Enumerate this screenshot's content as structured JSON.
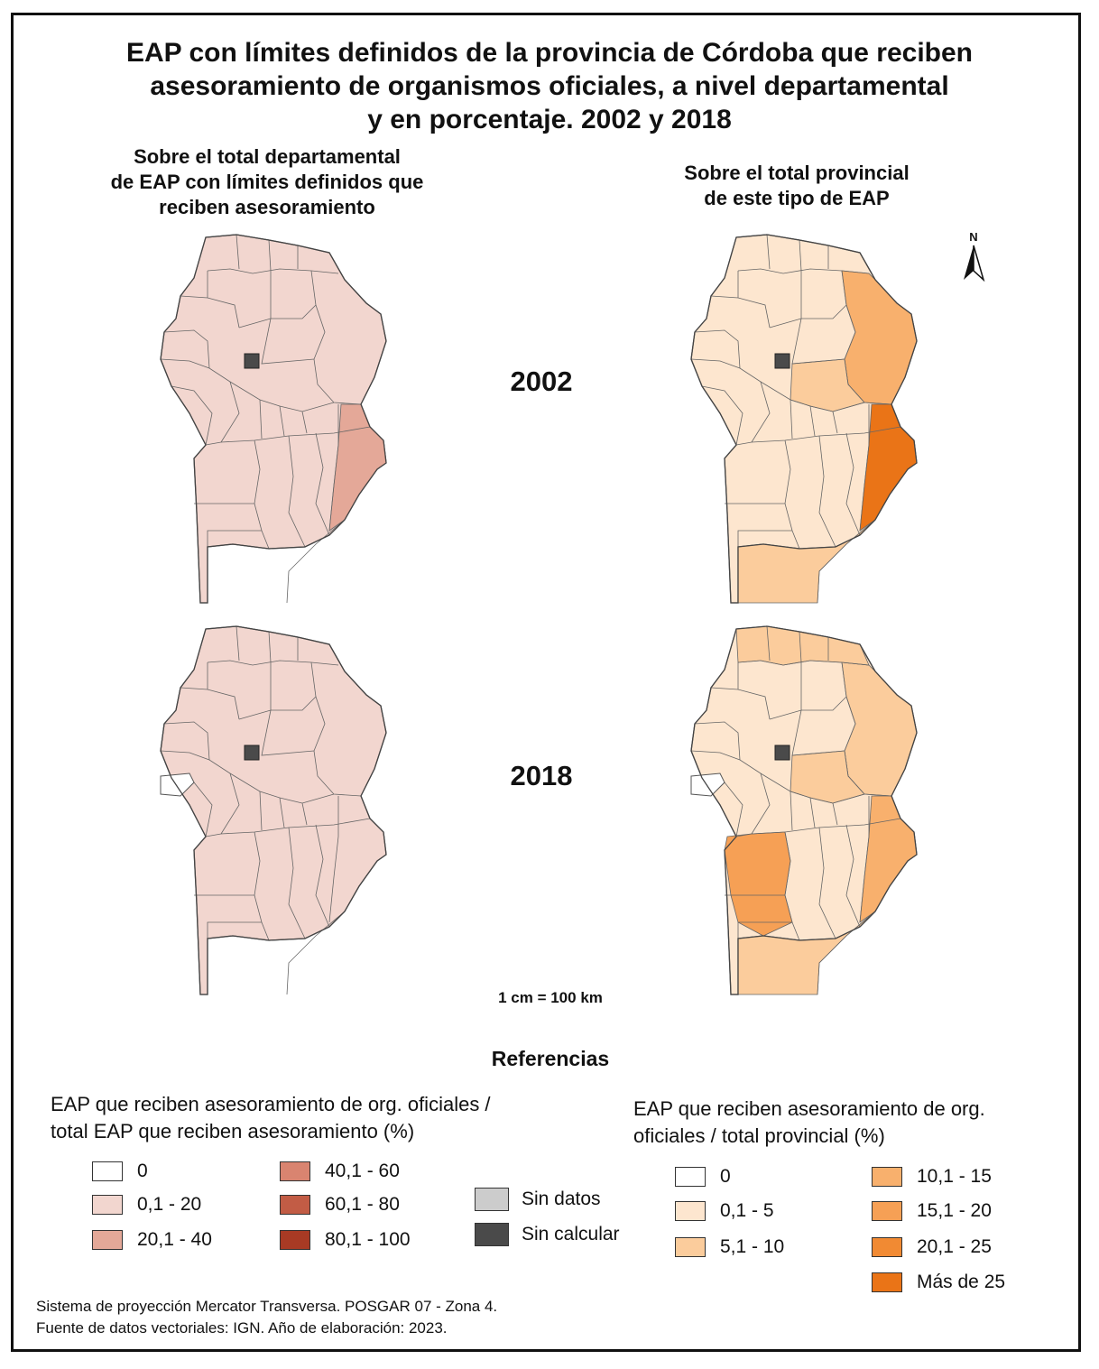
{
  "title": [
    "EAP con límites definidos de la provincia de Córdoba que reciben",
    "asesoramiento de organismos oficiales, a nivel departamental",
    "y en porcentaje. 2002 y 2018"
  ],
  "subtitle_left": [
    "Sobre el total departamental",
    "de EAP con límites definidos que",
    "reciben asesoramiento"
  ],
  "subtitle_right": [
    "Sobre el total provincial",
    "de este tipo de EAP"
  ],
  "years": [
    "2002",
    "2018"
  ],
  "north_label": "N",
  "scale": "1 cm = 100 km",
  "references_title": "Referencias",
  "legend_left": {
    "title": [
      "EAP que reciben asesoramiento de org. oficiales /",
      "total EAP que reciben asesoramiento (%)"
    ],
    "items": [
      {
        "label": "0",
        "color": "#ffffff"
      },
      {
        "label": "0,1 - 20",
        "color": "#f2d6cf"
      },
      {
        "label": "20,1 - 40",
        "color": "#e4a898"
      },
      {
        "label": "40,1 - 60",
        "color": "#d98470"
      },
      {
        "label": "60,1 - 80",
        "color": "#c25c45"
      },
      {
        "label": "80,1 - 100",
        "color": "#a83a24"
      }
    ]
  },
  "legend_grey": [
    {
      "label": "Sin datos",
      "color": "#cccccc"
    },
    {
      "label": "Sin calcular",
      "color": "#4a4a4a"
    }
  ],
  "legend_right": {
    "title": [
      "EAP que reciben asesoramiento de org.",
      "oficiales / total provincial (%)"
    ],
    "items": [
      {
        "label": "0",
        "color": "#ffffff"
      },
      {
        "label": "0,1 - 5",
        "color": "#fde6cf"
      },
      {
        "label": "5,1 - 10",
        "color": "#fbcc9c"
      },
      {
        "label": "10,1 - 15",
        "color": "#f8b06d"
      },
      {
        "label": "15,1 - 20",
        "color": "#f6a055"
      },
      {
        "label": "20,1 - 25",
        "color": "#f18a33"
      },
      {
        "label": "Más de 25",
        "color": "#ea7417"
      }
    ]
  },
  "maps": [
    {
      "name": "departamental-2002",
      "base": "#f2d6cf",
      "highlight": {
        "east": "#e4a898"
      }
    },
    {
      "name": "provincial-2002",
      "base": "#fde6cf",
      "highlight": {
        "northeast": "#f8b06d",
        "centraleast": "#fbcc9c",
        "east": "#ea7417",
        "south": "#fbcc9c"
      }
    },
    {
      "name": "departamental-2018",
      "base": "#f2d6cf",
      "nodata": "#ffffff"
    },
    {
      "name": "provincial-2018",
      "base": "#fde6cf",
      "nodata": "#ffffff",
      "highlight": {
        "northeast": "#fbcc9c",
        "north": "#fbcc9c",
        "centraleast": "#fbcc9c",
        "east": "#f8b06d",
        "southwest": "#f6a055",
        "south": "#fbcc9c"
      }
    }
  ],
  "footer": [
    "Sistema de proyección Mercator Transversa. POSGAR 07 - Zona 4.",
    "Fuente de datos vectoriales: IGN. Año de elaboración: 2023."
  ]
}
